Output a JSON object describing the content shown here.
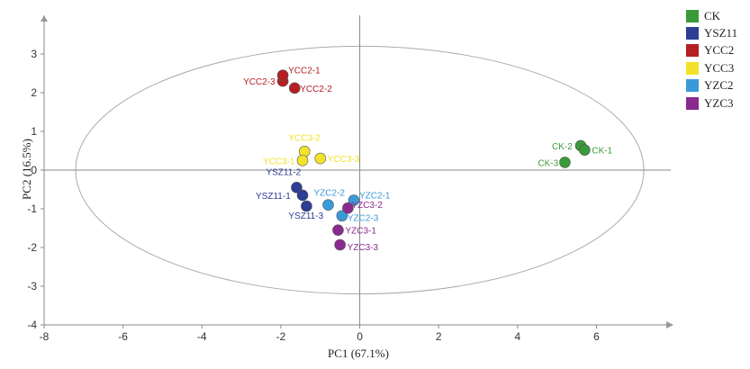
{
  "chart_data": {
    "type": "scatter",
    "title": "",
    "xlabel": "PC1 (67.1%)",
    "ylabel": "PC2 (16.5%)",
    "xlim": [
      -8,
      7.7
    ],
    "ylim": [
      -4,
      4
    ],
    "xticks": [
      -8,
      -6,
      -4,
      -2,
      0,
      2,
      4,
      6
    ],
    "yticks": [
      -4,
      -3,
      -2,
      -1,
      0,
      1,
      2,
      3
    ],
    "grid": false,
    "legend_position": "top-right",
    "confidence_ellipse": {
      "cx": 0,
      "cy": 0,
      "rx": 7.2,
      "ry": 3.2
    },
    "series": [
      {
        "name": "CK",
        "color": "#3a9a3a",
        "points": [
          {
            "label": "CK-2",
            "x": 5.6,
            "y": 0.63
          },
          {
            "label": "CK-1",
            "x": 5.7,
            "y": 0.52
          },
          {
            "label": "CK-3",
            "x": 5.2,
            "y": 0.2
          }
        ]
      },
      {
        "name": "YSZ11",
        "color": "#2c3e95",
        "points": [
          {
            "label": "YSZ11-2",
            "x": -1.6,
            "y": -0.45
          },
          {
            "label": "YSZ11-1",
            "x": -1.45,
            "y": -0.65
          },
          {
            "label": "YSZ11-3",
            "x": -1.35,
            "y": -0.93
          }
        ]
      },
      {
        "name": "YCC2",
        "color": "#b51f24",
        "points": [
          {
            "label": "YCC2-3",
            "x": -1.95,
            "y": 2.3
          },
          {
            "label": "YCC2-1",
            "x": -1.95,
            "y": 2.45
          },
          {
            "label": "YCC2-2",
            "x": -1.65,
            "y": 2.12
          }
        ]
      },
      {
        "name": "YCC3",
        "color": "#f2e32a",
        "points": [
          {
            "label": "YCC3-2",
            "x": -1.4,
            "y": 0.48
          },
          {
            "label": "YCC3-1",
            "x": -1.45,
            "y": 0.25
          },
          {
            "label": "YCC3-3",
            "x": -1.0,
            "y": 0.3
          }
        ]
      },
      {
        "name": "YZC2",
        "color": "#3a9ad9",
        "points": [
          {
            "label": "YZC2-2",
            "x": -0.8,
            "y": -0.9
          },
          {
            "label": "YZC2-1",
            "x": -0.15,
            "y": -0.78
          },
          {
            "label": "YZC2-3",
            "x": -0.45,
            "y": -1.18
          }
        ]
      },
      {
        "name": "YZC3",
        "color": "#8a2a8e",
        "points": [
          {
            "label": "YZC3-2",
            "x": -0.3,
            "y": -0.98
          },
          {
            "label": "YZC3-1",
            "x": -0.55,
            "y": -1.55
          },
          {
            "label": "YZC3-3",
            "x": -0.5,
            "y": -1.93
          }
        ]
      }
    ]
  }
}
